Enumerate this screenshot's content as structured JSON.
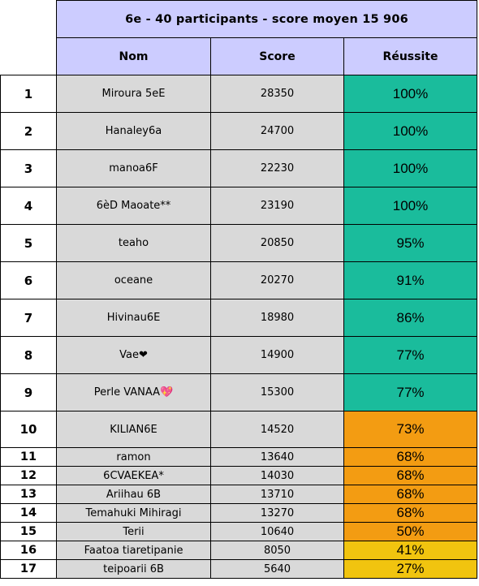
{
  "title": "6e - 40 participants - score moyen 15 906",
  "headers": {
    "name": "Nom",
    "score": "Score",
    "success": "Réussite"
  },
  "colors": {
    "header_bg": "#ccccff",
    "cell_bg": "#d9d9d9",
    "teal": "#1abc9c",
    "orange": "#f39c12",
    "yellow": "#f1c40f"
  },
  "rows": [
    {
      "rank": "1",
      "name": "Miroura 5eE",
      "score": "28350",
      "success": "100%",
      "color": "teal",
      "size": "big"
    },
    {
      "rank": "2",
      "name": "Hanaley6a",
      "score": "24700",
      "success": "100%",
      "color": "teal",
      "size": "big"
    },
    {
      "rank": "3",
      "name": "manoa6F",
      "score": "22230",
      "success": "100%",
      "color": "teal",
      "size": "big"
    },
    {
      "rank": "4",
      "name": "6èD Maoate**",
      "score": "23190",
      "success": "100%",
      "color": "teal",
      "size": "big"
    },
    {
      "rank": "5",
      "name": "teaho",
      "score": "20850",
      "success": "95%",
      "color": "teal",
      "size": "big"
    },
    {
      "rank": "6",
      "name": "oceane",
      "score": "20270",
      "success": "91%",
      "color": "teal",
      "size": "big"
    },
    {
      "rank": "7",
      "name": "Hivinau6E",
      "score": "18980",
      "success": "86%",
      "color": "teal",
      "size": "big"
    },
    {
      "rank": "8",
      "name": "Vae❤",
      "score": "14900",
      "success": "77%",
      "color": "teal",
      "size": "big"
    },
    {
      "rank": "9",
      "name": "Perle VANAA💖",
      "score": "15300",
      "success": "77%",
      "color": "teal",
      "size": "big"
    },
    {
      "rank": "10",
      "name": "KILIAN6E",
      "score": "14520",
      "success": "73%",
      "color": "orange",
      "size": "mid"
    },
    {
      "rank": "11",
      "name": "ramon",
      "score": "13640",
      "success": "68%",
      "color": "orange",
      "size": "small"
    },
    {
      "rank": "12",
      "name": "6CVAEKEA*",
      "score": "14030",
      "success": "68%",
      "color": "orange",
      "size": "small"
    },
    {
      "rank": "13",
      "name": "Ariihau 6B",
      "score": "13710",
      "success": "68%",
      "color": "orange",
      "size": "small"
    },
    {
      "rank": "14",
      "name": "Temahuki Mihiragi",
      "score": "13270",
      "success": "68%",
      "color": "orange",
      "size": "small"
    },
    {
      "rank": "15",
      "name": "Terii",
      "score": "10640",
      "success": "50%",
      "color": "orange",
      "size": "small"
    },
    {
      "rank": "16",
      "name": "Faatoa tiaretipanie",
      "score": "8050",
      "success": "41%",
      "color": "yellow",
      "size": "small"
    },
    {
      "rank": "17",
      "name": "teipoarii 6B",
      "score": "5640",
      "success": "27%",
      "color": "yellow",
      "size": "small"
    }
  ]
}
